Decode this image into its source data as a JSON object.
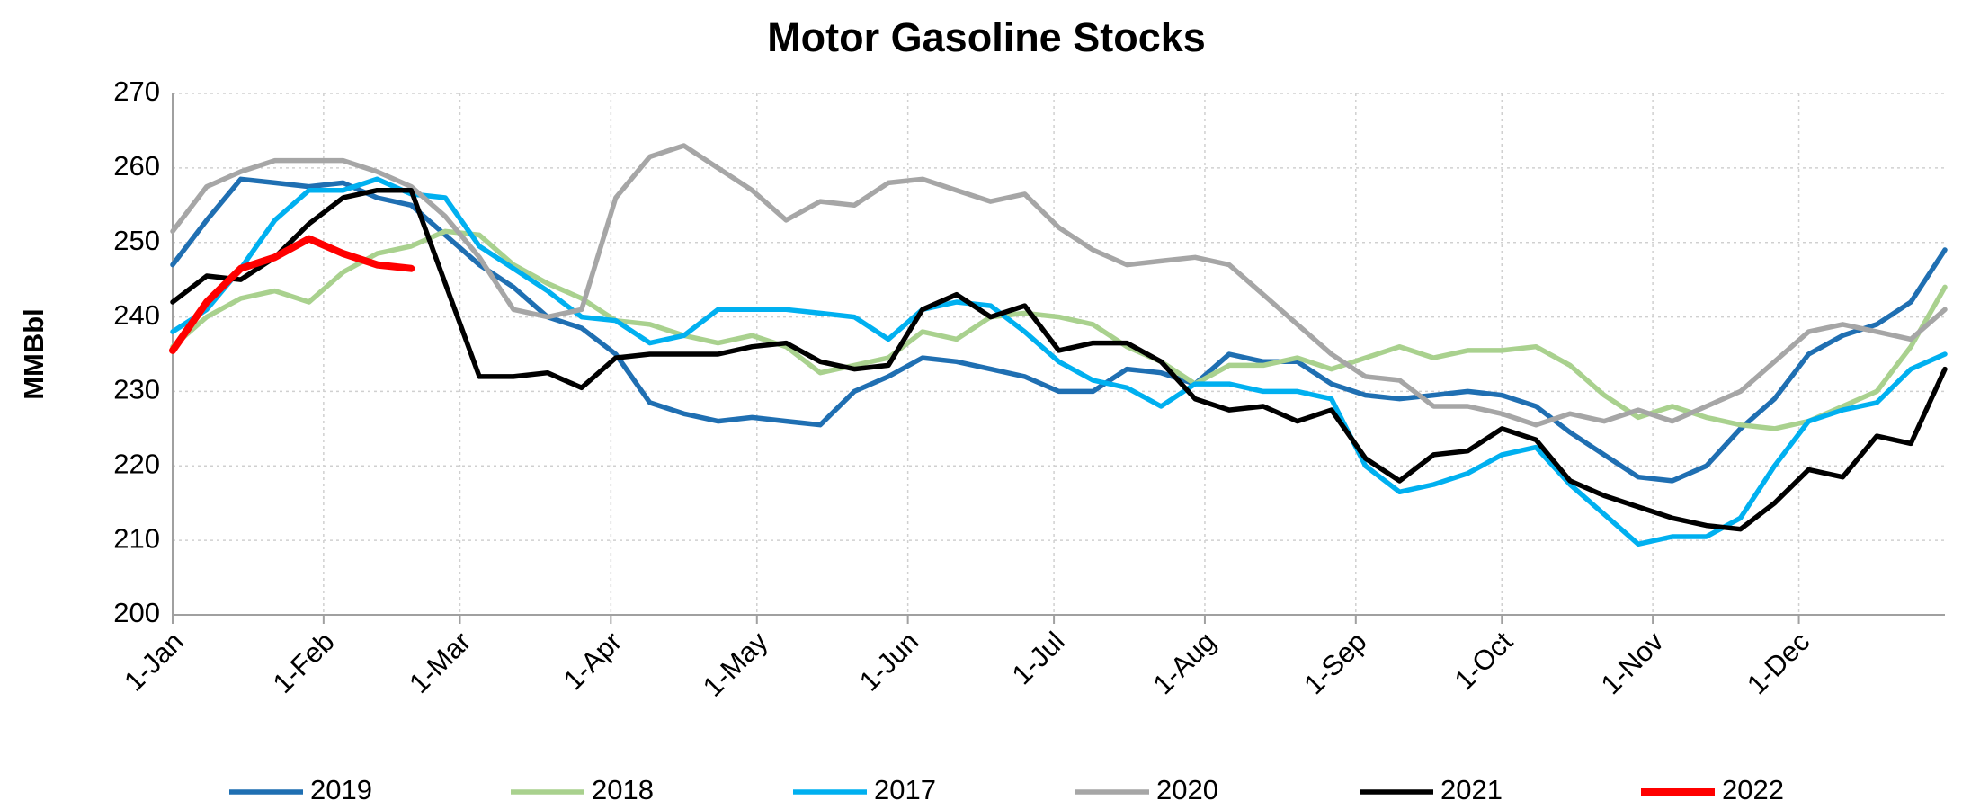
{
  "chart_data": {
    "type": "line",
    "title": "Motor Gasoline Stocks",
    "y_label": "MMBbl",
    "x": [
      1,
      8,
      15,
      22,
      29,
      36,
      43,
      50,
      57,
      64,
      71,
      78,
      85,
      92,
      99,
      106,
      113,
      120,
      127,
      134,
      141,
      148,
      155,
      162,
      169,
      176,
      183,
      190,
      197,
      204,
      211,
      218,
      225,
      232,
      239,
      246,
      253,
      260,
      267,
      274,
      281,
      288,
      295,
      302,
      309,
      316,
      323,
      330,
      337,
      344,
      351,
      358,
      365
    ],
    "xlim": [
      1,
      365
    ],
    "xticks": [
      {
        "value": 1,
        "label": "1-Jan"
      },
      {
        "value": 32,
        "label": "1-Feb"
      },
      {
        "value": 60,
        "label": "1-Mar"
      },
      {
        "value": 91,
        "label": "1-Apr"
      },
      {
        "value": 121,
        "label": "1-May"
      },
      {
        "value": 152,
        "label": "1-Jun"
      },
      {
        "value": 182,
        "label": "1-Jul"
      },
      {
        "value": 213,
        "label": "1-Aug"
      },
      {
        "value": 244,
        "label": "1-Sep"
      },
      {
        "value": 274,
        "label": "1-Oct"
      },
      {
        "value": 305,
        "label": "1-Nov"
      },
      {
        "value": 335,
        "label": "1-Dec"
      }
    ],
    "ylim": [
      200,
      270
    ],
    "yticks": [
      200,
      210,
      220,
      230,
      240,
      250,
      260,
      270
    ],
    "grid": true,
    "legend": "bottom",
    "series": [
      {
        "name": "2019",
        "color": "#1f6fb2",
        "values": [
          247,
          253,
          258.5,
          258,
          257.5,
          258,
          256,
          255,
          251,
          247,
          244,
          240,
          238.5,
          235,
          228.5,
          227,
          226,
          226.5,
          226,
          225.5,
          230,
          232,
          234.5,
          234,
          233,
          232,
          230,
          230,
          233,
          232.5,
          231,
          235,
          234,
          234,
          231,
          229.5,
          229,
          229.5,
          230,
          229.5,
          228,
          224.5,
          221.5,
          218.5,
          218,
          220,
          225,
          229,
          235,
          237.5,
          239,
          242,
          249
        ]
      },
      {
        "name": "2018",
        "color": "#a9d18e",
        "values": [
          236,
          240,
          242.5,
          243.5,
          242,
          246,
          248.5,
          249.5,
          251.5,
          251,
          247,
          244.5,
          242.5,
          239.5,
          239,
          237.5,
          236.5,
          237.5,
          236,
          232.5,
          233.5,
          234.5,
          238,
          237,
          240,
          240.5,
          240,
          239,
          236,
          234,
          231,
          233.5,
          233.5,
          234.5,
          233,
          234.5,
          236,
          234.5,
          235.5,
          235.5,
          236,
          233.5,
          229.5,
          226.5,
          228,
          226.5,
          225.5,
          225,
          226,
          228,
          230,
          236,
          244
        ]
      },
      {
        "name": "2017",
        "color": "#00b0f0",
        "values": [
          238,
          241,
          246.5,
          253,
          257,
          257,
          258.5,
          256.5,
          256,
          249.5,
          246.5,
          243.5,
          240,
          239.5,
          236.5,
          237.5,
          241,
          241,
          241,
          240.5,
          240,
          237,
          241,
          242,
          241.5,
          238,
          234,
          231.5,
          230.5,
          228,
          231,
          231,
          230,
          230,
          229,
          220,
          216.5,
          217.5,
          219,
          221.5,
          222.5,
          217.5,
          213.5,
          209.5,
          210.5,
          210.5,
          213,
          220,
          226,
          227.5,
          228.5,
          233,
          235
        ]
      },
      {
        "name": "2020",
        "color": "#a6a6a6",
        "values": [
          251.5,
          257.5,
          259.5,
          261,
          261,
          261,
          259.5,
          257.5,
          253.5,
          248,
          241,
          240,
          241,
          256,
          261.5,
          263,
          260,
          257,
          253,
          255.5,
          255,
          258,
          258.5,
          257,
          255.5,
          256.5,
          252,
          249,
          247,
          247.5,
          248,
          247,
          243,
          239,
          235,
          232,
          231.5,
          228,
          228,
          227,
          225.5,
          227,
          226,
          227.5,
          226,
          228,
          230,
          234,
          238,
          239,
          238,
          237,
          241
        ]
      },
      {
        "name": "2021",
        "color": "#000000",
        "values": [
          242,
          245.5,
          245,
          248,
          252.5,
          256,
          257,
          257,
          244.5,
          232,
          232,
          232.5,
          230.5,
          234.5,
          235,
          235,
          235,
          236,
          236.5,
          234,
          233,
          233.5,
          241,
          243,
          240,
          241.5,
          235.5,
          236.5,
          236.5,
          234,
          229,
          227.5,
          228,
          226,
          227.5,
          221,
          218,
          221.5,
          222,
          225,
          223.5,
          218,
          216,
          214.5,
          213,
          212,
          211.5,
          215,
          219.5,
          218.5,
          224,
          223,
          233
        ]
      },
      {
        "name": "2022",
        "color": "#ff0000",
        "values": [
          235.5,
          242,
          246.5,
          248,
          250.5,
          248.5,
          247,
          246.5,
          null,
          null,
          null,
          null,
          null,
          null,
          null,
          null,
          null,
          null,
          null,
          null,
          null,
          null,
          null,
          null,
          null,
          null,
          null,
          null,
          null,
          null,
          null,
          null,
          null,
          null,
          null,
          null,
          null,
          null,
          null,
          null,
          null,
          null,
          null,
          null,
          null,
          null,
          null,
          null,
          null,
          null,
          null,
          null,
          null
        ]
      }
    ]
  }
}
